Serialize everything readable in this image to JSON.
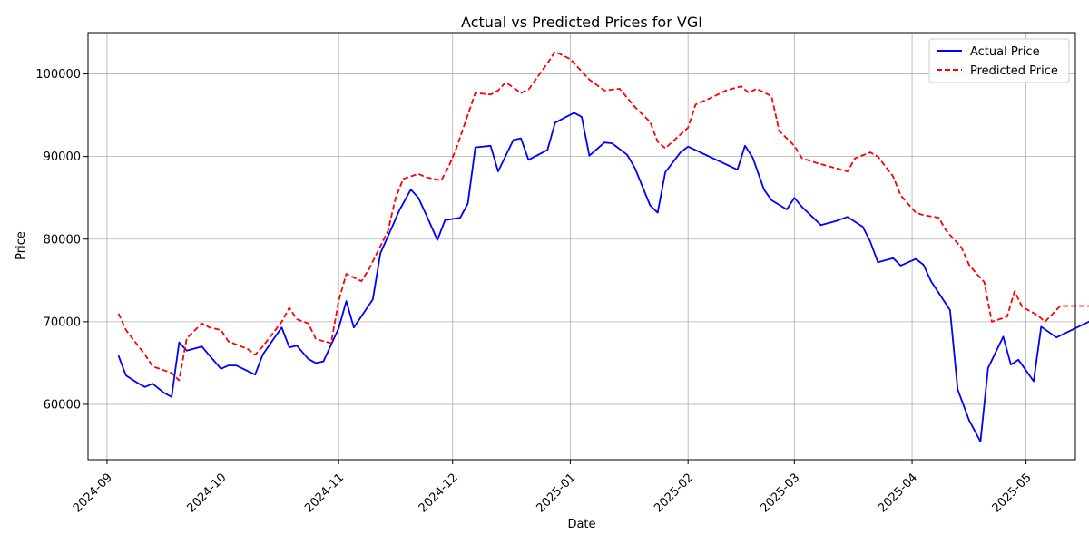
{
  "chart_data": {
    "type": "line",
    "title": "Actual vs Predicted Prices for VGI",
    "xlabel": "Date",
    "ylabel": "Price",
    "grid": true,
    "legend_position": "top-right",
    "xlim": [
      "2024-08-27",
      "2025-05-14"
    ],
    "ylim": [
      53300,
      105000
    ],
    "x_ticks": [
      "2024-09",
      "2024-10",
      "2024-11",
      "2024-12",
      "2025-01",
      "2025-02",
      "2025-03",
      "2025-04",
      "2025-05"
    ],
    "x_tick_dates": [
      "2024-09-01",
      "2024-10-01",
      "2024-11-01",
      "2024-12-01",
      "2025-01-01",
      "2025-02-01",
      "2025-03-01",
      "2025-04-01",
      "2025-05-01"
    ],
    "y_ticks": [
      60000,
      70000,
      80000,
      90000,
      100000
    ],
    "series": [
      {
        "name": "Actual Price",
        "color": "#0000ff",
        "style": "solid",
        "points": [
          [
            "2024-09-04",
            65900
          ],
          [
            "2024-09-06",
            63500
          ],
          [
            "2024-09-09",
            62600
          ],
          [
            "2024-09-11",
            62100
          ],
          [
            "2024-09-13",
            62500
          ],
          [
            "2024-09-16",
            61400
          ],
          [
            "2024-09-18",
            60900
          ],
          [
            "2024-09-20",
            67500
          ],
          [
            "2024-09-22",
            66500
          ],
          [
            "2024-09-26",
            67000
          ],
          [
            "2024-09-28",
            65900
          ],
          [
            "2024-10-01",
            64300
          ],
          [
            "2024-10-03",
            64700
          ],
          [
            "2024-10-05",
            64700
          ],
          [
            "2024-10-10",
            63600
          ],
          [
            "2024-10-12",
            66000
          ],
          [
            "2024-10-15",
            68000
          ],
          [
            "2024-10-17",
            69300
          ],
          [
            "2024-10-19",
            66900
          ],
          [
            "2024-10-21",
            67100
          ],
          [
            "2024-10-24",
            65500
          ],
          [
            "2024-10-26",
            65000
          ],
          [
            "2024-10-28",
            65200
          ],
          [
            "2024-11-01",
            69200
          ],
          [
            "2024-11-03",
            72500
          ],
          [
            "2024-11-05",
            69300
          ],
          [
            "2024-11-10",
            72700
          ],
          [
            "2024-11-12",
            78300
          ],
          [
            "2024-11-15",
            81400
          ],
          [
            "2024-11-17",
            83500
          ],
          [
            "2024-11-20",
            86000
          ],
          [
            "2024-11-22",
            85000
          ],
          [
            "2024-11-24",
            83000
          ],
          [
            "2024-11-27",
            79900
          ],
          [
            "2024-11-29",
            82300
          ],
          [
            "2024-12-03",
            82600
          ],
          [
            "2024-12-05",
            84300
          ],
          [
            "2024-12-07",
            91100
          ],
          [
            "2024-12-11",
            91300
          ],
          [
            "2024-12-13",
            88200
          ],
          [
            "2024-12-17",
            92000
          ],
          [
            "2024-12-19",
            92200
          ],
          [
            "2024-12-21",
            89600
          ],
          [
            "2024-12-26",
            90800
          ],
          [
            "2024-12-28",
            94100
          ],
          [
            "2025-01-02",
            95300
          ],
          [
            "2025-01-04",
            94800
          ],
          [
            "2025-01-06",
            90100
          ],
          [
            "2025-01-10",
            91700
          ],
          [
            "2025-01-12",
            91600
          ],
          [
            "2025-01-16",
            90200
          ],
          [
            "2025-01-18",
            88600
          ],
          [
            "2025-01-22",
            84100
          ],
          [
            "2025-01-24",
            83200
          ],
          [
            "2025-01-26",
            88100
          ],
          [
            "2025-01-30",
            90500
          ],
          [
            "2025-02-01",
            91200
          ],
          [
            "2025-02-14",
            88400
          ],
          [
            "2025-02-16",
            91300
          ],
          [
            "2025-02-18",
            89900
          ],
          [
            "2025-02-21",
            86000
          ],
          [
            "2025-02-23",
            84700
          ],
          [
            "2025-02-27",
            83600
          ],
          [
            "2025-03-01",
            85000
          ],
          [
            "2025-03-03",
            83900
          ],
          [
            "2025-03-08",
            81700
          ],
          [
            "2025-03-12",
            82200
          ],
          [
            "2025-03-15",
            82700
          ],
          [
            "2025-03-19",
            81500
          ],
          [
            "2025-03-21",
            79700
          ],
          [
            "2025-03-23",
            77200
          ],
          [
            "2025-03-27",
            77700
          ],
          [
            "2025-03-29",
            76800
          ],
          [
            "2025-04-02",
            77600
          ],
          [
            "2025-04-04",
            76900
          ],
          [
            "2025-04-06",
            74900
          ],
          [
            "2025-04-11",
            71400
          ],
          [
            "2025-04-13",
            61800
          ],
          [
            "2025-04-16",
            58100
          ],
          [
            "2025-04-19",
            55500
          ],
          [
            "2025-04-21",
            64400
          ],
          [
            "2025-04-25",
            68200
          ],
          [
            "2025-04-27",
            64800
          ],
          [
            "2025-04-29",
            65400
          ],
          [
            "2025-05-03",
            62800
          ],
          [
            "2025-05-05",
            69400
          ],
          [
            "2025-05-09",
            68100
          ],
          [
            "2025-05-18",
            70100
          ]
        ]
      },
      {
        "name": "Predicted Price",
        "color": "#ff0000",
        "style": "dashed",
        "points": [
          [
            "2024-09-04",
            71000
          ],
          [
            "2024-09-06",
            69000
          ],
          [
            "2024-09-11",
            66000
          ],
          [
            "2024-09-13",
            64600
          ],
          [
            "2024-09-18",
            63800
          ],
          [
            "2024-09-20",
            62900
          ],
          [
            "2024-09-22",
            68000
          ],
          [
            "2024-09-26",
            69800
          ],
          [
            "2024-09-28",
            69300
          ],
          [
            "2024-10-01",
            69000
          ],
          [
            "2024-10-03",
            67600
          ],
          [
            "2024-10-08",
            66700
          ],
          [
            "2024-10-10",
            66000
          ],
          [
            "2024-10-12",
            67000
          ],
          [
            "2024-10-17",
            70000
          ],
          [
            "2024-10-19",
            71700
          ],
          [
            "2024-10-21",
            70300
          ],
          [
            "2024-10-24",
            69800
          ],
          [
            "2024-10-26",
            67900
          ],
          [
            "2024-10-30",
            67400
          ],
          [
            "2024-11-01",
            72500
          ],
          [
            "2024-11-03",
            75800
          ],
          [
            "2024-11-07",
            74900
          ],
          [
            "2024-11-09",
            76400
          ],
          [
            "2024-11-14",
            81000
          ],
          [
            "2024-11-16",
            85000
          ],
          [
            "2024-11-18",
            87300
          ],
          [
            "2024-11-22",
            87900
          ],
          [
            "2024-11-24",
            87500
          ],
          [
            "2024-11-28",
            87100
          ],
          [
            "2024-11-30",
            88800
          ],
          [
            "2024-12-02",
            91000
          ],
          [
            "2024-12-07",
            97700
          ],
          [
            "2024-12-11",
            97500
          ],
          [
            "2024-12-13",
            98000
          ],
          [
            "2024-12-15",
            99000
          ],
          [
            "2024-12-19",
            97700
          ],
          [
            "2024-12-21",
            98100
          ],
          [
            "2024-12-26",
            101300
          ],
          [
            "2024-12-28",
            102700
          ],
          [
            "2025-01-01",
            101800
          ],
          [
            "2025-01-06",
            99300
          ],
          [
            "2025-01-10",
            98000
          ],
          [
            "2025-01-14",
            98200
          ],
          [
            "2025-01-18",
            96000
          ],
          [
            "2025-01-22",
            94200
          ],
          [
            "2025-01-24",
            91800
          ],
          [
            "2025-01-26",
            91000
          ],
          [
            "2025-02-01",
            93500
          ],
          [
            "2025-02-03",
            96300
          ],
          [
            "2025-02-07",
            97100
          ],
          [
            "2025-02-11",
            98000
          ],
          [
            "2025-02-15",
            98500
          ],
          [
            "2025-02-17",
            97700
          ],
          [
            "2025-02-19",
            98200
          ],
          [
            "2025-02-23",
            97300
          ],
          [
            "2025-02-25",
            93100
          ],
          [
            "2025-03-01",
            91300
          ],
          [
            "2025-03-03",
            89800
          ],
          [
            "2025-03-07",
            89200
          ],
          [
            "2025-03-11",
            88700
          ],
          [
            "2025-03-15",
            88200
          ],
          [
            "2025-03-17",
            89800
          ],
          [
            "2025-03-21",
            90500
          ],
          [
            "2025-03-23",
            90000
          ],
          [
            "2025-03-27",
            87600
          ],
          [
            "2025-03-29",
            85300
          ],
          [
            "2025-04-02",
            83200
          ],
          [
            "2025-04-04",
            82900
          ],
          [
            "2025-04-08",
            82600
          ],
          [
            "2025-04-10",
            81000
          ],
          [
            "2025-04-14",
            79000
          ],
          [
            "2025-04-16",
            76900
          ],
          [
            "2025-04-18",
            75800
          ],
          [
            "2025-04-20",
            74800
          ],
          [
            "2025-04-22",
            70000
          ],
          [
            "2025-04-26",
            70600
          ],
          [
            "2025-04-28",
            73700
          ],
          [
            "2025-04-30",
            71800
          ],
          [
            "2025-05-04",
            70800
          ],
          [
            "2025-05-06",
            70000
          ],
          [
            "2025-05-10",
            71900
          ],
          [
            "2025-05-18",
            71900
          ]
        ]
      }
    ]
  }
}
